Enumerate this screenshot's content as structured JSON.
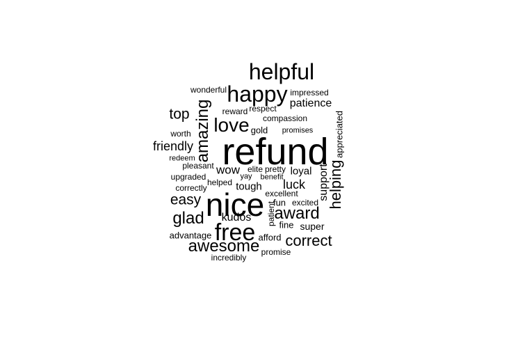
{
  "colors": {
    "background": "#ffffff",
    "text": "#000000"
  },
  "words": {
    "refund": "refund",
    "nice": "nice",
    "helpful": "helpful",
    "happy": "happy",
    "free": "free",
    "love": "love",
    "amazing": "amazing",
    "awesome": "awesome",
    "award": "award",
    "glad": "glad",
    "correct": "correct",
    "helping": "helping",
    "easy": "easy",
    "top": "top",
    "friendly": "friendly",
    "luck": "luck",
    "support": "support",
    "patience": "patience",
    "appreciated": "appreciated",
    "kudos": "kudos",
    "wow": "wow",
    "tough": "tough",
    "super": "super",
    "loyal": "loyal",
    "wonderful": "wonderful",
    "impressed": "impressed",
    "respect": "respect",
    "reward": "reward",
    "compassion": "compassion",
    "gold": "gold",
    "promises": "promises",
    "worth": "worth",
    "redeem": "redeem",
    "pleasant": "pleasant",
    "elite": "elite",
    "pretty": "pretty",
    "yay": "yay",
    "benefit": "benefit",
    "upgraded": "upgraded",
    "helped": "helped",
    "correctly": "correctly",
    "excellent": "excellent",
    "fun": "fun",
    "excited": "excited",
    "patient": "patient",
    "fine": "fine",
    "advantage": "advantage",
    "afford": "afford",
    "promise": "promise",
    "incredibly": "incredibly"
  }
}
